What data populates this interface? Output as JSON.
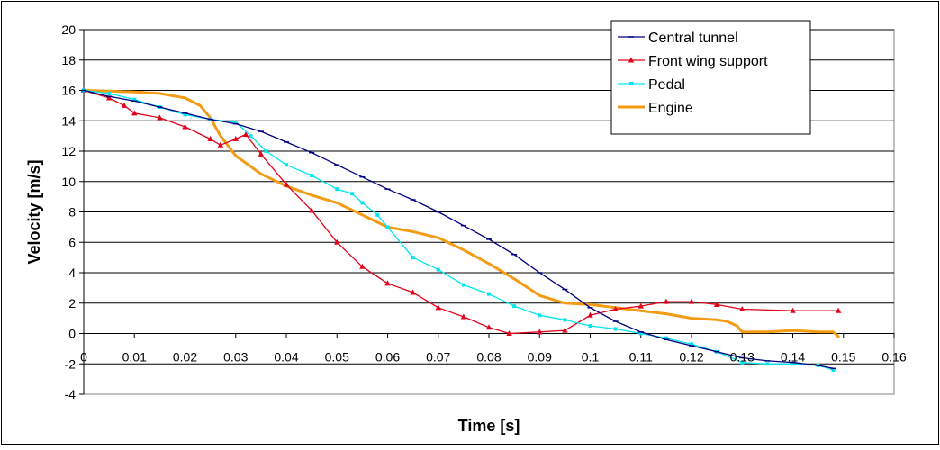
{
  "chart_data": {
    "type": "line",
    "xlabel": "Time [s]",
    "ylabel": "Velocity [m/s]",
    "xlim": [
      0,
      0.16
    ],
    "ylim": [
      -4,
      20
    ],
    "x_ticks": [
      0,
      0.01,
      0.02,
      0.03,
      0.04,
      0.05,
      0.06,
      0.07,
      0.08,
      0.09,
      0.1,
      0.11,
      0.12,
      0.13,
      0.14,
      0.15,
      0.16
    ],
    "x_tick_labels": [
      "0",
      "0.01",
      "0.02",
      "0.03",
      "0.04",
      "0.05",
      "0.06",
      "0.07",
      "0.08",
      "0.09",
      "0.1",
      "0.11",
      "0.12",
      "0.13",
      "0.14",
      "0.15",
      "0.16"
    ],
    "y_ticks": [
      -4,
      -2,
      0,
      2,
      4,
      6,
      8,
      10,
      12,
      14,
      16,
      18,
      20
    ],
    "y_tick_labels": [
      "-4",
      "-2",
      "0",
      "2",
      "4",
      "6",
      "8",
      "10",
      "12",
      "14",
      "16",
      "18",
      "20"
    ],
    "grid": "horizontal",
    "legend_position": "top-right",
    "series": [
      {
        "name": "Central tunnel",
        "color": "#000080",
        "marker": "dash",
        "x": [
          0,
          0.005,
          0.01,
          0.015,
          0.02,
          0.025,
          0.03,
          0.035,
          0.04,
          0.045,
          0.05,
          0.055,
          0.06,
          0.065,
          0.07,
          0.075,
          0.08,
          0.085,
          0.09,
          0.095,
          0.1,
          0.105,
          0.11,
          0.115,
          0.12,
          0.125,
          0.13,
          0.135,
          0.14,
          0.145,
          0.148
        ],
        "y": [
          16.0,
          15.6,
          15.3,
          14.9,
          14.5,
          14.1,
          13.8,
          13.3,
          12.6,
          11.9,
          11.1,
          10.3,
          9.5,
          8.8,
          8.0,
          7.1,
          6.2,
          5.2,
          4.0,
          2.9,
          1.7,
          0.8,
          0.1,
          -0.4,
          -0.8,
          -1.2,
          -1.6,
          -1.8,
          -1.9,
          -2.1,
          -2.3
        ]
      },
      {
        "name": "Front wing support",
        "color": "#e3001b",
        "marker": "triangle",
        "x": [
          0,
          0.005,
          0.008,
          0.01,
          0.015,
          0.02,
          0.025,
          0.027,
          0.03,
          0.032,
          0.035,
          0.04,
          0.045,
          0.05,
          0.055,
          0.06,
          0.065,
          0.07,
          0.075,
          0.08,
          0.084,
          0.09,
          0.095,
          0.1,
          0.105,
          0.11,
          0.115,
          0.12,
          0.125,
          0.13,
          0.14,
          0.149
        ],
        "y": [
          16.0,
          15.5,
          15.0,
          14.5,
          14.2,
          13.6,
          12.8,
          12.4,
          12.8,
          13.1,
          11.8,
          9.8,
          8.1,
          6.0,
          4.4,
          3.3,
          2.7,
          1.7,
          1.1,
          0.4,
          0.0,
          0.1,
          0.2,
          1.2,
          1.6,
          1.8,
          2.1,
          2.1,
          1.9,
          1.6,
          1.5,
          1.5
        ]
      },
      {
        "name": "Pedal",
        "color": "#00e5ee",
        "marker": "square",
        "x": [
          0,
          0.005,
          0.01,
          0.015,
          0.02,
          0.025,
          0.03,
          0.033,
          0.036,
          0.04,
          0.045,
          0.05,
          0.053,
          0.055,
          0.058,
          0.06,
          0.065,
          0.07,
          0.075,
          0.08,
          0.085,
          0.09,
          0.095,
          0.1,
          0.105,
          0.11,
          0.115,
          0.12,
          0.125,
          0.13,
          0.135,
          0.14,
          0.145,
          0.148
        ],
        "y": [
          16.0,
          15.8,
          15.4,
          14.9,
          14.4,
          14.1,
          13.9,
          13.0,
          12.0,
          11.1,
          10.4,
          9.5,
          9.2,
          8.6,
          7.8,
          7.0,
          5.0,
          4.2,
          3.2,
          2.6,
          1.8,
          1.2,
          0.9,
          0.5,
          0.3,
          0.0,
          -0.3,
          -0.7,
          -1.2,
          -1.9,
          -2.0,
          -2.0,
          -2.1,
          -2.4
        ]
      },
      {
        "name": "Engine",
        "color": "#f39b13",
        "marker": "none",
        "x": [
          0,
          0.005,
          0.01,
          0.015,
          0.02,
          0.023,
          0.025,
          0.027,
          0.03,
          0.035,
          0.04,
          0.045,
          0.05,
          0.055,
          0.06,
          0.065,
          0.07,
          0.075,
          0.08,
          0.085,
          0.09,
          0.095,
          0.1,
          0.105,
          0.11,
          0.115,
          0.12,
          0.125,
          0.127,
          0.129,
          0.13,
          0.135,
          0.14,
          0.145,
          0.148,
          0.149
        ],
        "y": [
          16.0,
          15.95,
          15.9,
          15.8,
          15.5,
          15.0,
          14.2,
          13.0,
          11.7,
          10.5,
          9.7,
          9.1,
          8.6,
          7.8,
          7.0,
          6.7,
          6.3,
          5.5,
          4.6,
          3.6,
          2.5,
          2.0,
          1.9,
          1.7,
          1.5,
          1.3,
          1.0,
          0.9,
          0.8,
          0.5,
          0.1,
          0.1,
          0.2,
          0.1,
          0.1,
          -0.2
        ]
      }
    ]
  }
}
